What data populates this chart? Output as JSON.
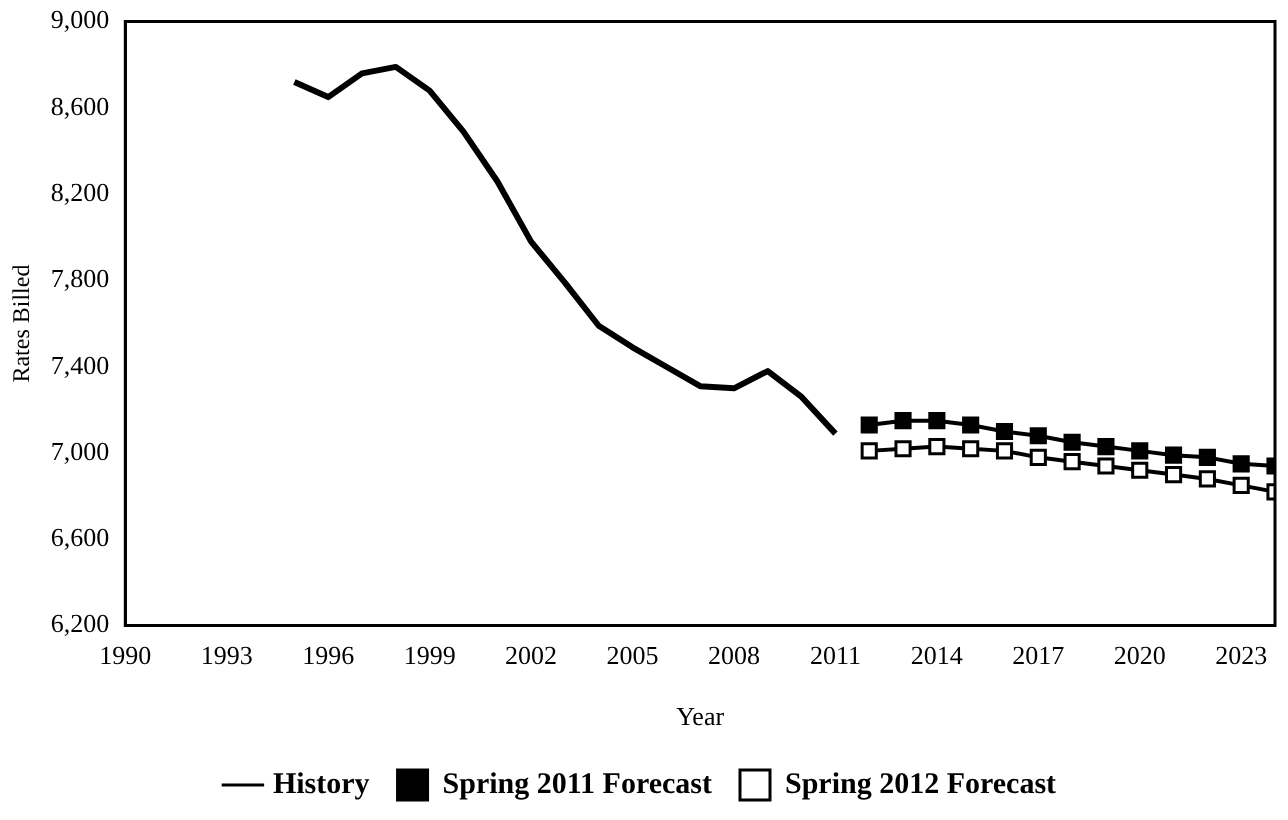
{
  "chart_data": {
    "type": "line",
    "xlabel": "Year",
    "ylabel": "Rates Billed",
    "xlim": [
      1990,
      2024
    ],
    "xticks": [
      1990,
      1993,
      1996,
      1999,
      2002,
      2005,
      2008,
      2011,
      2014,
      2017,
      2020,
      2023
    ],
    "ylim": [
      6200,
      9000
    ],
    "yticks": [
      {
        "value": 6200,
        "label": "6,200"
      },
      {
        "value": 6600,
        "label": "6,600"
      },
      {
        "value": 7000,
        "label": "7,000"
      },
      {
        "value": 7400,
        "label": "7,400"
      },
      {
        "value": 7800,
        "label": "7,800"
      },
      {
        "value": 8200,
        "label": "8,200"
      },
      {
        "value": 8600,
        "label": "8,600"
      },
      {
        "value": 9000,
        "label": "9,000"
      }
    ],
    "grid": false,
    "legend": "bottom",
    "line_style": "solid",
    "series": [
      {
        "name": "History",
        "color": "#000000",
        "marker": "none",
        "x": [
          1995,
          1996,
          1997,
          1998,
          1999,
          2000,
          2001,
          2002,
          2003,
          2004,
          2005,
          2006,
          2007,
          2008,
          2009,
          2010,
          2011
        ],
        "values": [
          8720,
          8650,
          8760,
          8790,
          8680,
          8490,
          8260,
          7980,
          7790,
          7590,
          7490,
          7400,
          7310,
          7300,
          7380,
          7260,
          7090
        ]
      },
      {
        "name": "Spring 2011 Forecast",
        "color": "#000000",
        "marker": "square",
        "x": [
          2012,
          2013,
          2014,
          2015,
          2016,
          2017,
          2018,
          2019,
          2020,
          2021,
          2022,
          2023,
          2024
        ],
        "values": [
          7130,
          7150,
          7150,
          7130,
          7100,
          7080,
          7050,
          7030,
          7010,
          6990,
          6980,
          6950,
          6940
        ]
      },
      {
        "name": "Spring 2012 Forecast",
        "color": "#ffffff",
        "marker": "square",
        "x": [
          2012,
          2013,
          2014,
          2015,
          2016,
          2017,
          2018,
          2019,
          2020,
          2021,
          2022,
          2023,
          2024
        ],
        "values": [
          7010,
          7020,
          7030,
          7020,
          7010,
          6980,
          6960,
          6940,
          6920,
          6900,
          6880,
          6850,
          6820
        ]
      }
    ]
  }
}
